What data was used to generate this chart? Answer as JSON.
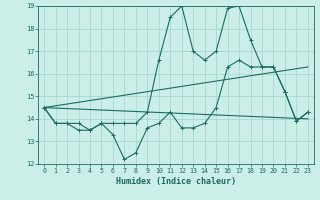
{
  "xlabel": "Humidex (Indice chaleur)",
  "xlim": [
    -0.5,
    23.5
  ],
  "ylim": [
    12,
    19
  ],
  "yticks": [
    12,
    13,
    14,
    15,
    16,
    17,
    18,
    19
  ],
  "xticks": [
    0,
    1,
    2,
    3,
    4,
    5,
    6,
    7,
    8,
    9,
    10,
    11,
    12,
    13,
    14,
    15,
    16,
    17,
    18,
    19,
    20,
    21,
    22,
    23
  ],
  "bg_color": "#cceee8",
  "grid_color": "#a8d8d0",
  "line_color": "#1a6b60",
  "line1_x": [
    0,
    1,
    2,
    3,
    4,
    5,
    6,
    7,
    8,
    9,
    10,
    11,
    12,
    13,
    14,
    15,
    16,
    17,
    18,
    19,
    20,
    21,
    22,
    23
  ],
  "line1_y": [
    14.5,
    13.8,
    13.8,
    13.8,
    13.5,
    13.8,
    13.8,
    13.8,
    13.8,
    14.3,
    16.6,
    18.5,
    19.0,
    17.0,
    16.6,
    17.0,
    18.9,
    19.0,
    17.5,
    16.3,
    16.3,
    15.2,
    13.9,
    14.3
  ],
  "line2_x": [
    0,
    1,
    2,
    3,
    4,
    5,
    6,
    7,
    8,
    9,
    10,
    11,
    12,
    13,
    14,
    15,
    16,
    17,
    18,
    19,
    20,
    21,
    22,
    23
  ],
  "line2_y": [
    14.5,
    13.8,
    13.8,
    13.5,
    13.5,
    13.8,
    13.3,
    12.2,
    12.5,
    13.6,
    13.8,
    14.3,
    13.6,
    13.6,
    13.8,
    14.5,
    16.3,
    16.6,
    16.3,
    16.3,
    16.3,
    15.2,
    13.9,
    14.3
  ],
  "line3_x": [
    0,
    23
  ],
  "line3_y": [
    14.5,
    14.0
  ],
  "line4_x": [
    0,
    23
  ],
  "line4_y": [
    14.5,
    16.3
  ]
}
